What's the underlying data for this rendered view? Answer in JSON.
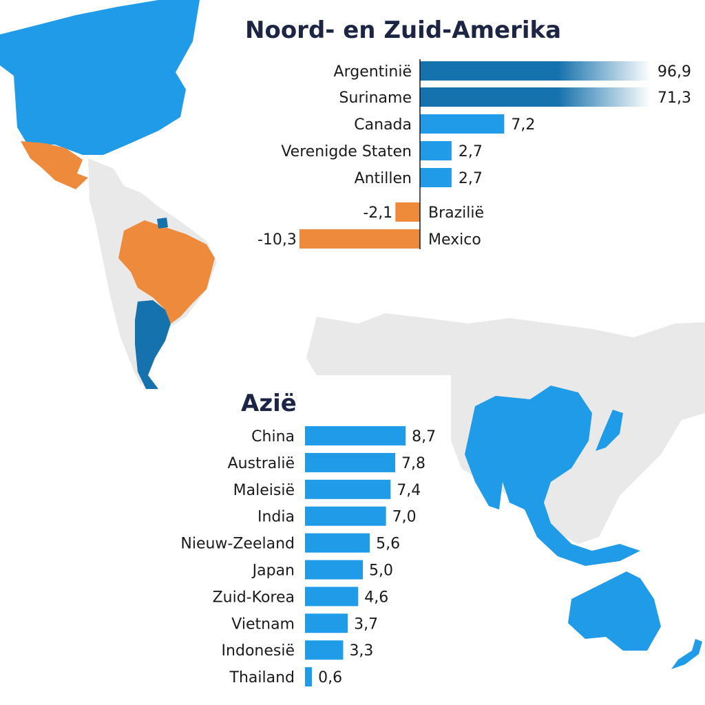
{
  "colors": {
    "positive": "#1f9be8",
    "strong_positive": "#1672ad",
    "negative": "#ee8a3c",
    "map_grey": "#e9e9e9",
    "title": "#1d2545"
  },
  "chart_data": [
    {
      "type": "bar",
      "orientation": "horizontal",
      "title": "Noord- en Zuid-Amerika",
      "categories": [
        "Argentinië",
        "Suriname",
        "Canada",
        "Verenigde Staten",
        "Antillen",
        "Brazilië",
        "Mexico"
      ],
      "values": [
        96.9,
        71.3,
        7.2,
        2.7,
        2.7,
        -2.1,
        -10.3
      ],
      "value_labels": [
        "96,9",
        "71,3",
        "7,2",
        "2,7",
        "2,7",
        "-2,1",
        "-10,3"
      ],
      "truncated": [
        true,
        true,
        false,
        false,
        false,
        false,
        false
      ]
    },
    {
      "type": "bar",
      "orientation": "horizontal",
      "title": "Azië",
      "categories": [
        "China",
        "Australië",
        "Maleisië",
        "India",
        "Nieuw-Zeeland",
        "Japan",
        "Zuid-Korea",
        "Vietnam",
        "Indonesië",
        "Thailand"
      ],
      "values": [
        8.7,
        7.8,
        7.4,
        7.0,
        5.6,
        5.0,
        4.6,
        3.7,
        3.3,
        0.6
      ],
      "value_labels": [
        "8,7",
        "7,8",
        "7,4",
        "7,0",
        "5,6",
        "5,0",
        "4,6",
        "3,7",
        "3,3",
        "0,6"
      ]
    }
  ]
}
